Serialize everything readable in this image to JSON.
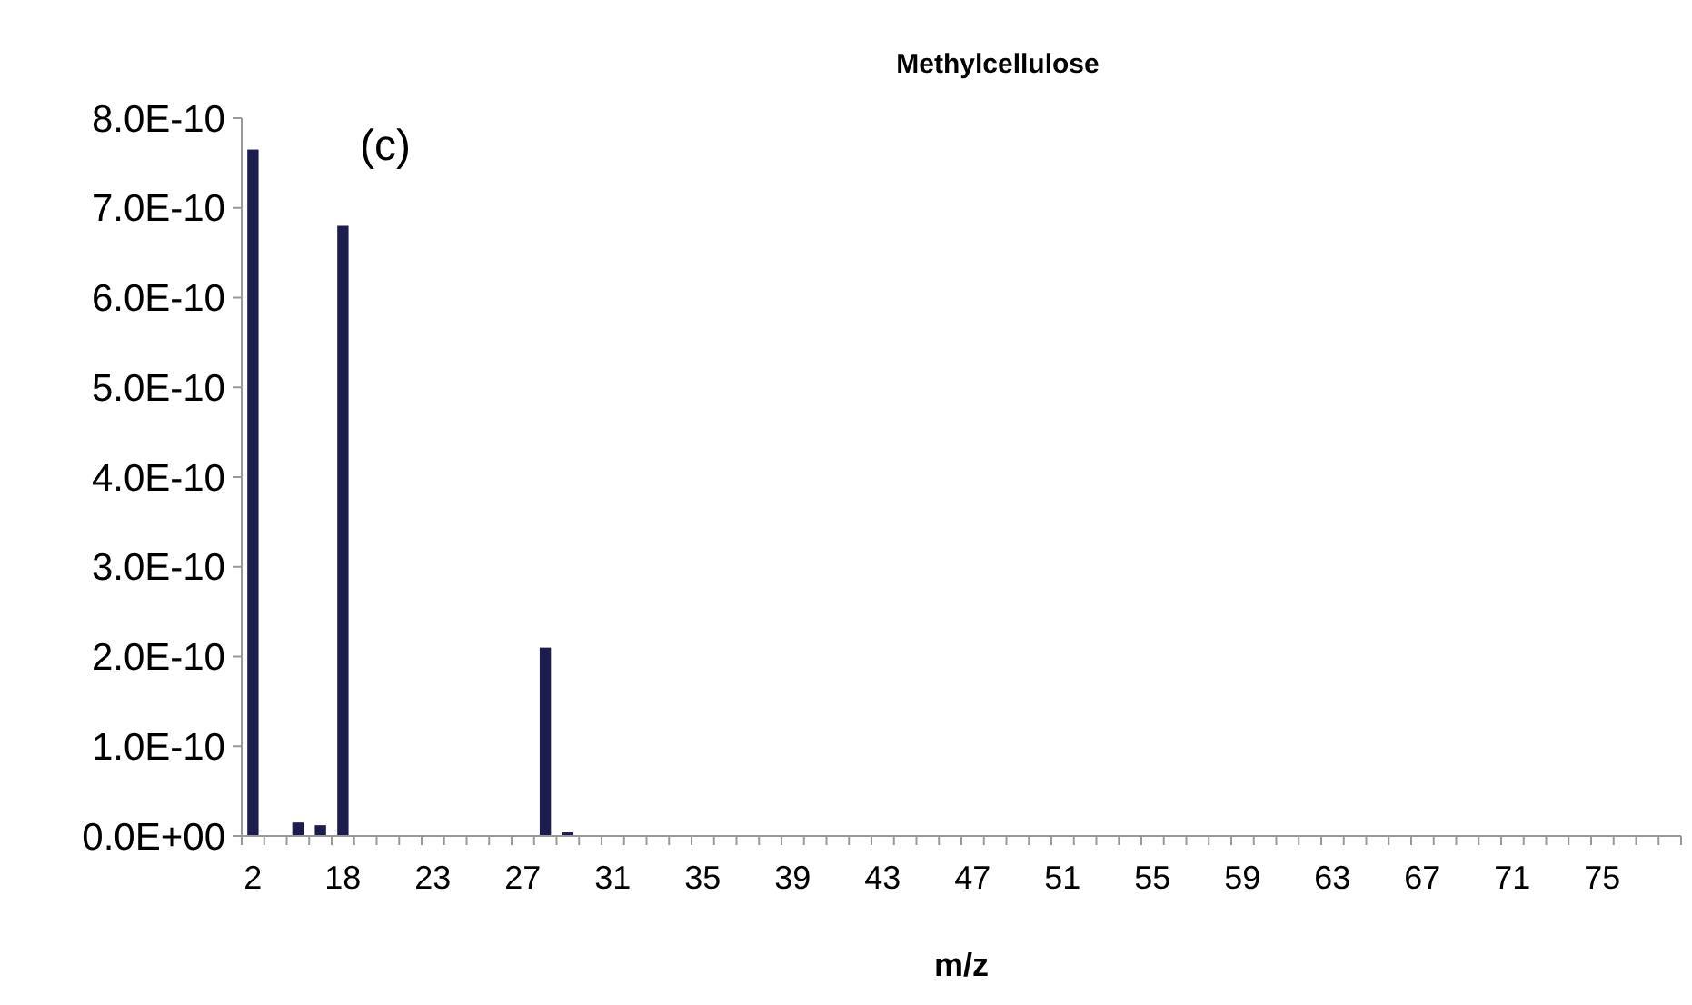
{
  "chart_data": {
    "type": "bar",
    "title": "Methylcellulose",
    "xlabel": "m/z",
    "annotations": [
      "(c)"
    ],
    "categories": [
      "2",
      null,
      null,
      null,
      "18",
      null,
      null,
      null,
      "23",
      null,
      null,
      null,
      "27",
      null,
      null,
      null,
      "31",
      null,
      null,
      null,
      "35",
      null,
      null,
      null,
      "39",
      null,
      null,
      null,
      "43",
      null,
      null,
      null,
      "47",
      null,
      null,
      null,
      "51",
      null,
      null,
      null,
      "55",
      null,
      null,
      null,
      "59",
      null,
      null,
      null,
      "63",
      null,
      null,
      null,
      "67",
      null,
      null,
      null,
      "71",
      null,
      null,
      null,
      "75",
      null,
      null,
      null
    ],
    "values": [
      7.65e-10,
      null,
      1.5e-11,
      1.2e-11,
      6.8e-10,
      null,
      0,
      0,
      0,
      0,
      0,
      0,
      0,
      2.1e-10,
      4e-12,
      0,
      0,
      0,
      0,
      0,
      0,
      0,
      0,
      0,
      0,
      0,
      0,
      0,
      0,
      0,
      0,
      0,
      0,
      0,
      0,
      0,
      0,
      0,
      0,
      0,
      0,
      0,
      0,
      0,
      0,
      0,
      0,
      0,
      0,
      0,
      0,
      0,
      0,
      0,
      0,
      0,
      0,
      0,
      0,
      0,
      0,
      0,
      0,
      0
    ],
    "color": "#1c1c4e",
    "ylim": [
      0,
      8e-10
    ],
    "yticks": [
      {
        "value": 0,
        "label": "0.0E+00"
      },
      {
        "value": 1e-10,
        "label": "1.0E-10"
      },
      {
        "value": 2e-10,
        "label": "2.0E-10"
      },
      {
        "value": 3e-10,
        "label": "3.0E-10"
      },
      {
        "value": 4e-10,
        "label": "4.0E-10"
      },
      {
        "value": 5e-10,
        "label": "5.0E-10"
      },
      {
        "value": 6e-10,
        "label": "6.0E-10"
      },
      {
        "value": 7e-10,
        "label": "7.0E-10"
      },
      {
        "value": 8e-10,
        "label": "8.0E-10"
      }
    ],
    "grid": false
  }
}
